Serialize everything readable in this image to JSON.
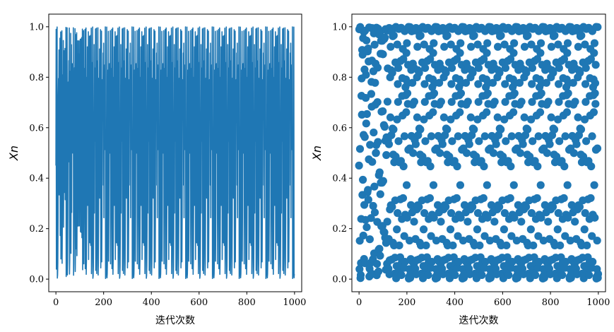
{
  "chart_data": [
    {
      "type": "line",
      "title": "",
      "xlabel": "迭代次数",
      "ylabel": "Xn",
      "xlim": [
        -30,
        1030
      ],
      "ylim": [
        -0.05,
        1.05
      ],
      "xticks": [
        0,
        200,
        400,
        600,
        800,
        1000
      ],
      "yticks": [
        0.0,
        0.2,
        0.4,
        0.6,
        0.8,
        1.0
      ],
      "xtick_labels": [
        "0",
        "200",
        "400",
        "600",
        "800",
        "1000"
      ],
      "ytick_labels": [
        "0.0",
        "0.2",
        "0.4",
        "0.6",
        "0.8",
        "1.0"
      ],
      "grid": false,
      "color": "#1f77b4",
      "series": [
        {
          "x_start": 0,
          "x_step": 1,
          "count": 1000,
          "generator": "logistic map x(n+1)=4*x(n)*(1-x(n))",
          "initial_value": 0.45
        }
      ]
    },
    {
      "type": "scatter",
      "title": "",
      "xlabel": "迭代次数",
      "ylabel": "Xn",
      "xlim": [
        -30,
        1030
      ],
      "ylim": [
        -0.05,
        1.05
      ],
      "xticks": [
        0,
        200,
        400,
        600,
        800,
        1000
      ],
      "yticks": [
        0.0,
        0.2,
        0.4,
        0.6,
        0.8,
        1.0
      ],
      "xtick_labels": [
        "0",
        "200",
        "400",
        "600",
        "800",
        "1000"
      ],
      "ytick_labels": [
        "0.0",
        "0.2",
        "0.4",
        "0.6",
        "0.8",
        "1.0"
      ],
      "grid": false,
      "color": "#1f77b4",
      "series": [
        {
          "x_start": 0,
          "x_step": 1,
          "count": 1000,
          "generator": "logistic map x(n+1)=4*x(n)*(1-x(n))",
          "initial_value": 0.45
        }
      ]
    }
  ]
}
